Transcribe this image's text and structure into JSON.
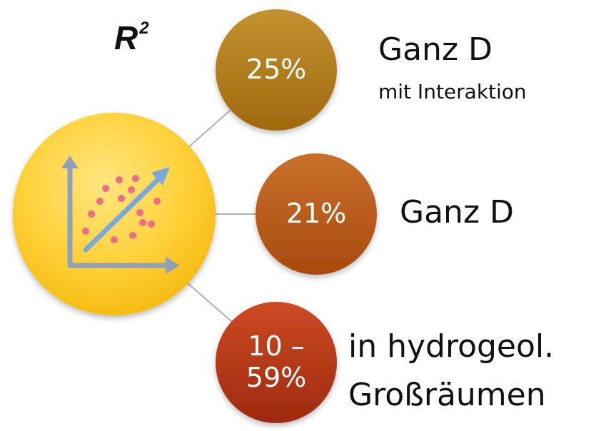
{
  "title": "R",
  "title_sup": "2",
  "hub_icon": "scatter-plot-icon",
  "items": [
    {
      "value": "25%",
      "label": "Ganz D",
      "sublabel": "mit Interaktion",
      "color_top": "#c0902a",
      "color_bottom": "#a06a10"
    },
    {
      "value": "21%",
      "label": "Ganz D",
      "color_top": "#c8702a",
      "color_bottom": "#a84c10"
    },
    {
      "value_line1": "10 –",
      "value_line2": "59%",
      "label_line1": "in hydrogeol.",
      "label_line2": "Großräumen",
      "color_top": "#c84a22",
      "color_bottom": "#a02c10"
    }
  ],
  "colors": {
    "hub_inner": "#ffd84a",
    "hub_outer": "#f6bb10",
    "axis": "#8fa0b8",
    "trend_arrow": "#7aaadc",
    "dots": "#f26a8a",
    "connector": "#b0b0b0"
  }
}
